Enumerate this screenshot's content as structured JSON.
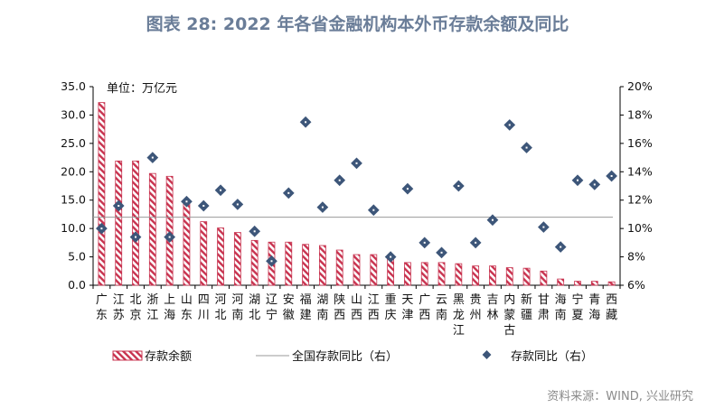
{
  "title": "图表 28: 2022 年各省金融机构本外币存款余额及同比",
  "source": "资料来源：WIND, 兴业研究",
  "chart_data": {
    "type": "bar+scatter",
    "unit_label": "单位：万亿元",
    "categories": [
      "广东",
      "江苏",
      "北京",
      "浙江",
      "上海",
      "山东",
      "四川",
      "河北",
      "河南",
      "湖北",
      "辽宁",
      "安徽",
      "福建",
      "湖南",
      "陕西",
      "山西",
      "江西",
      "重庆",
      "天津",
      "广西",
      "云南",
      "黑龙江",
      "贵州",
      "吉林",
      "内蒙古",
      "新疆",
      "甘肃",
      "海南",
      "宁夏",
      "青海",
      "西藏"
    ],
    "series": [
      {
        "name": "存款余额",
        "type": "bar",
        "axis": "left",
        "values": [
          32.2,
          21.9,
          21.9,
          19.7,
          19.2,
          14.9,
          11.2,
          10.1,
          9.3,
          7.9,
          7.6,
          7.6,
          7.2,
          7.0,
          6.2,
          5.4,
          5.4,
          4.8,
          4.0,
          4.0,
          4.0,
          3.8,
          3.4,
          3.4,
          3.1,
          3.0,
          2.5,
          1.1,
          0.7,
          0.7,
          0.6
        ]
      },
      {
        "name": "全国存款同比（右）",
        "type": "line",
        "axis": "right",
        "value": 10.8
      },
      {
        "name": "存款同比（右）",
        "type": "scatter",
        "axis": "right",
        "values": [
          10.0,
          11.6,
          9.4,
          15.0,
          9.4,
          11.9,
          11.6,
          12.7,
          11.7,
          9.8,
          7.7,
          12.5,
          17.5,
          11.5,
          13.4,
          14.6,
          11.3,
          8.0,
          12.8,
          9.0,
          8.3,
          13.0,
          9.0,
          10.6,
          17.3,
          15.7,
          10.1,
          8.7,
          13.4,
          13.1,
          13.7
        ]
      }
    ],
    "left_axis": {
      "range": [
        0,
        35
      ],
      "ticks": [
        "0.0",
        "5.0",
        "10.0",
        "15.0",
        "20.0",
        "25.0",
        "30.0",
        "35.0"
      ]
    },
    "right_axis": {
      "range": [
        6,
        20
      ],
      "unit": "%",
      "ticks": [
        "6%",
        "8%",
        "10%",
        "12%",
        "14%",
        "16%",
        "18%",
        "20%"
      ]
    },
    "grid": false,
    "legend_position": "bottom",
    "colors": {
      "bar": "#c8334f",
      "marker": "#3d5679",
      "line": "#999999",
      "title": "#6a7d98"
    }
  }
}
